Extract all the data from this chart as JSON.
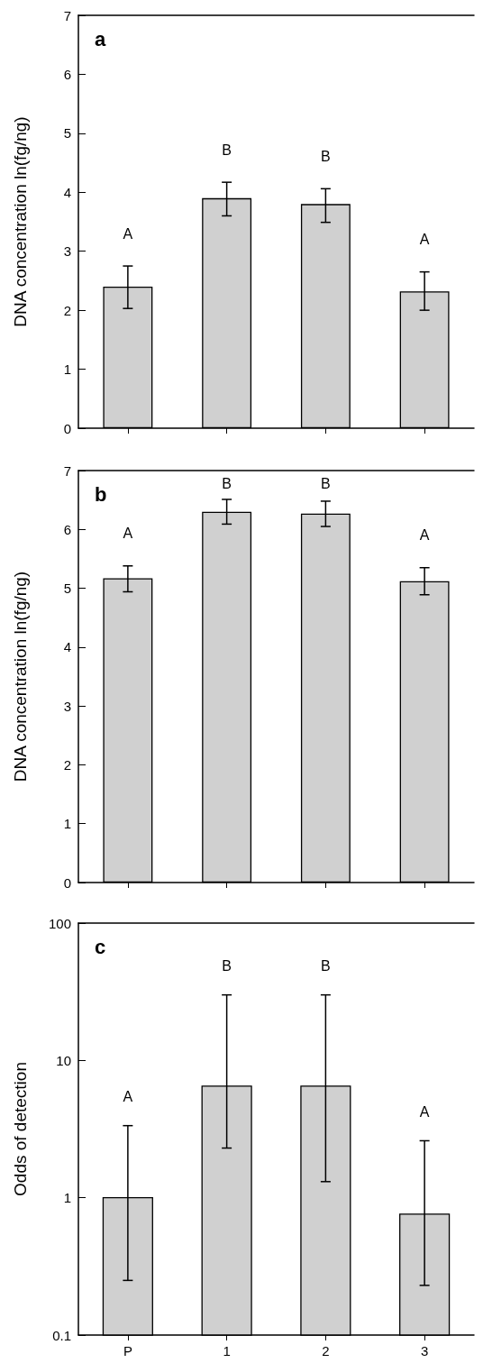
{
  "chart_data": [
    {
      "type": "bar",
      "title": "a",
      "ylabel": "DNA concentration ln(fg/ng)",
      "categories": [
        null,
        null,
        null,
        null
      ],
      "series": [
        {
          "color": "#d0d0d0",
          "values": [
            2.4,
            3.9,
            3.8,
            2.32
          ],
          "errors": [
            [
              2.03,
              2.75
            ],
            [
              3.6,
              4.17
            ],
            [
              3.49,
              4.06
            ],
            [
              2.0,
              2.65
            ]
          ]
        }
      ],
      "ylim": [
        0,
        7
      ],
      "yticks": [
        0,
        1,
        2,
        3,
        4,
        5,
        6,
        7
      ],
      "annotations": [
        "A",
        "B",
        "B",
        "A"
      ]
    },
    {
      "type": "bar",
      "title": "b",
      "ylabel": "DNA concentration ln(fg/ng)",
      "categories": [
        null,
        null,
        null,
        null
      ],
      "series": [
        {
          "color": "#d0d0d0",
          "values": [
            5.17,
            6.3,
            6.27,
            5.12
          ],
          "errors": [
            [
              4.94,
              5.38
            ],
            [
              6.09,
              6.51
            ],
            [
              6.05,
              6.48
            ],
            [
              4.89,
              5.35
            ]
          ]
        }
      ],
      "ylim": [
        0,
        7
      ],
      "yticks": [
        0,
        1,
        2,
        3,
        4,
        5,
        6,
        7
      ],
      "annotations": [
        "A",
        "B",
        "B",
        "A"
      ]
    },
    {
      "type": "bar",
      "title": "c",
      "ylabel": "Odds of detection",
      "categories": [
        "P",
        "1",
        "2",
        "3"
      ],
      "log": "y",
      "series": [
        {
          "color": "#d0d0d0",
          "values": [
            1.0,
            6.5,
            6.5,
            0.76
          ],
          "errors": [
            [
              0.25,
              3.35
            ],
            [
              2.3,
              30
            ],
            [
              1.31,
              30
            ],
            [
              0.23,
              2.6
            ]
          ]
        }
      ],
      "ylim": [
        0.1,
        100
      ],
      "yticks": [
        0.1,
        1,
        10,
        100
      ],
      "annotations": [
        "A",
        "B",
        "B",
        "A"
      ]
    }
  ]
}
